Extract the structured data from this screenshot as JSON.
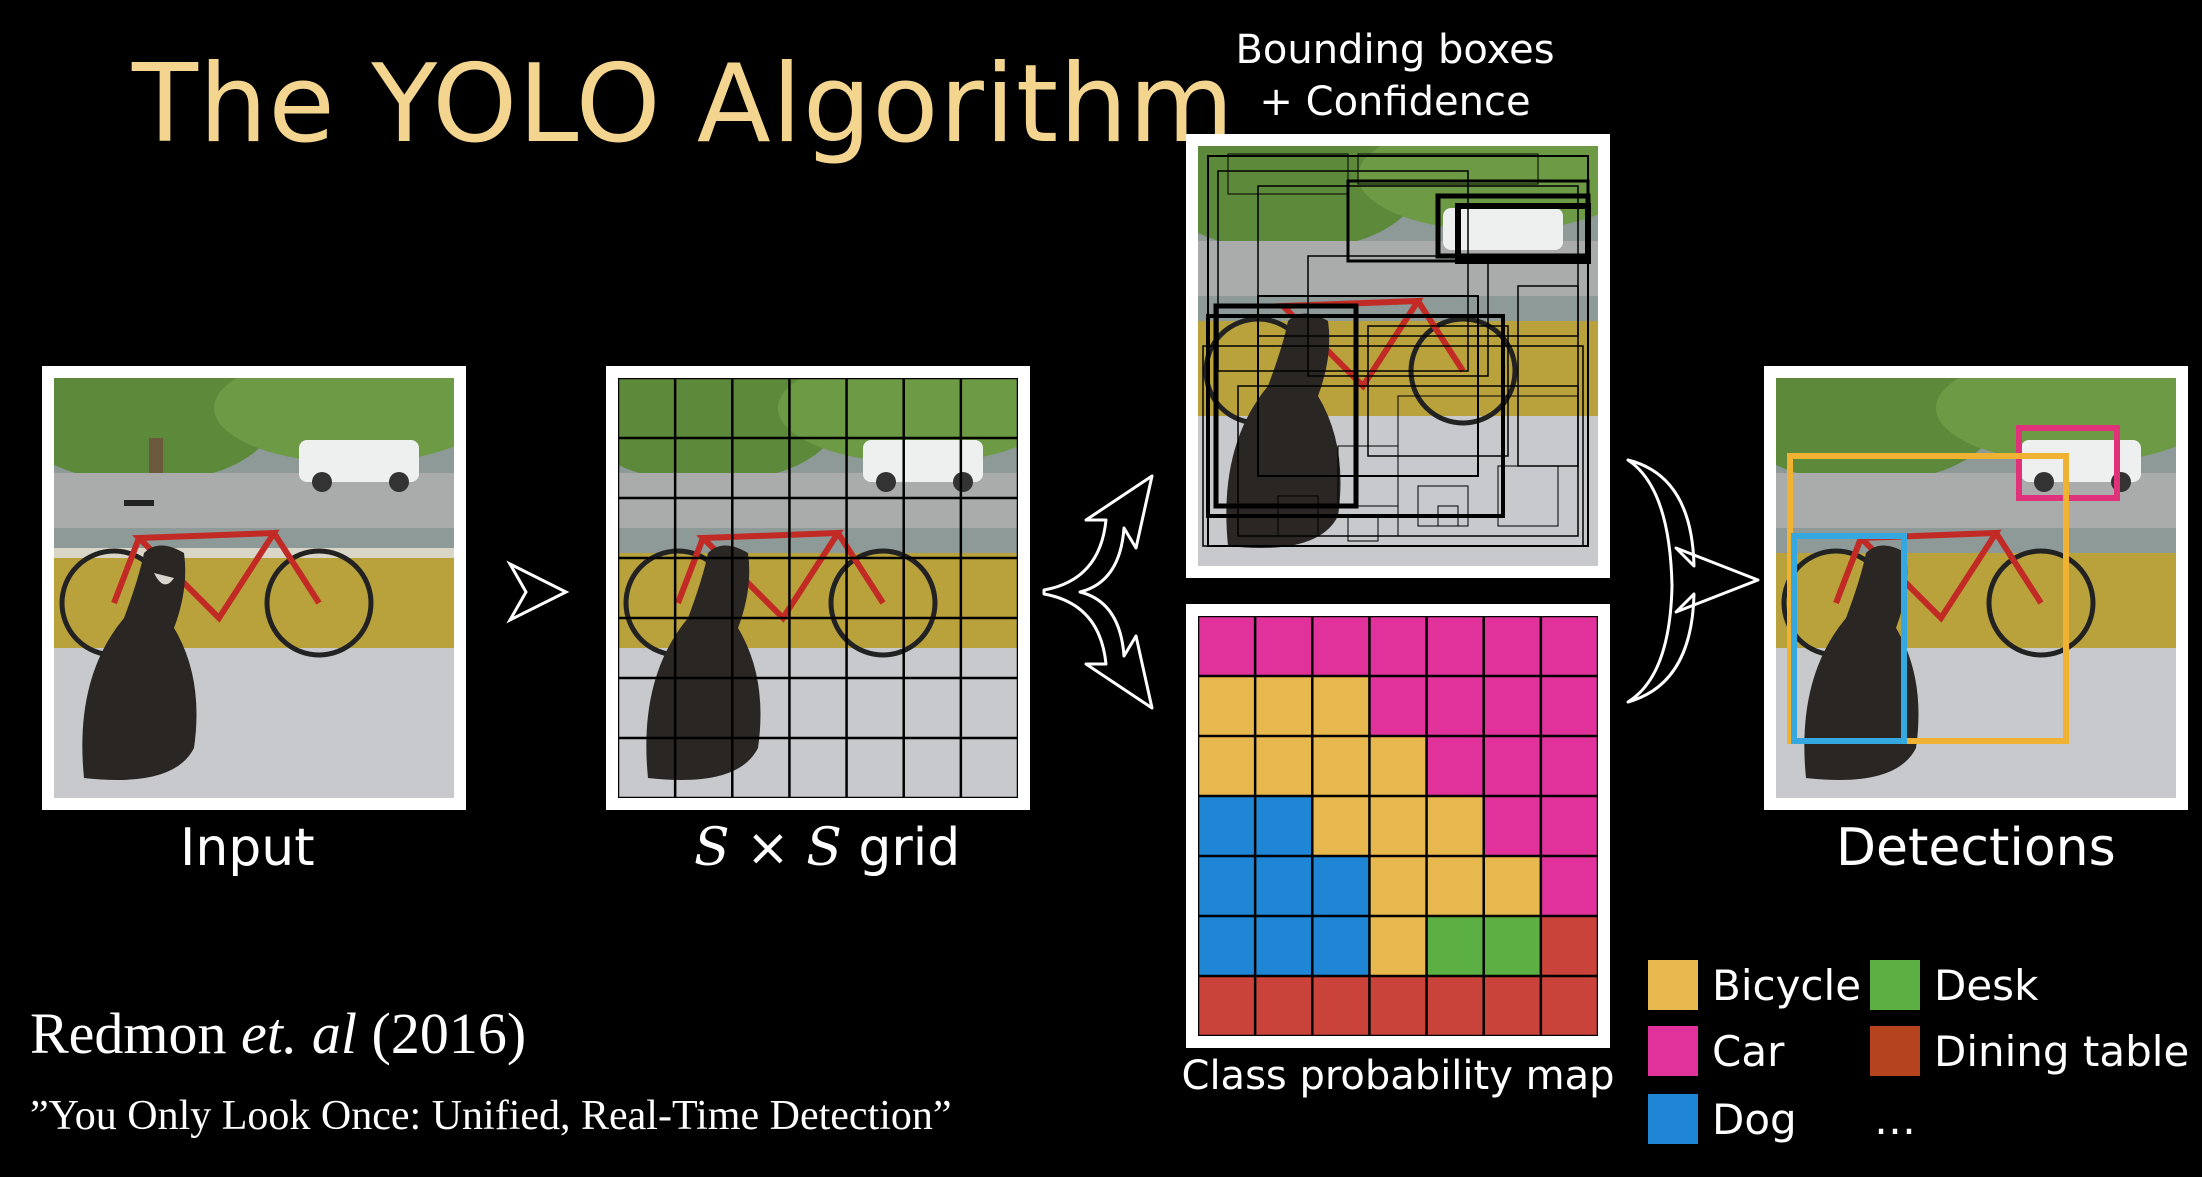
{
  "title": "The YOLO Algorithm",
  "captions": {
    "input": "Input",
    "grid_s": "S",
    "grid_times": "×",
    "grid_rest": "grid",
    "boxes_line1": "Bounding boxes",
    "boxes_line2": "+ Confidence",
    "class_map": "Class probability map",
    "detections": "Detections"
  },
  "citation": {
    "authors": "Redmon",
    "etal": "et. al",
    "year": "(2016)",
    "paper": "”You Only Look Once: Unified, Real-Time Detection”"
  },
  "legend": [
    {
      "label": "Bicycle",
      "color": "#e6b84e"
    },
    {
      "label": "Desk",
      "color": "#5cb043"
    },
    {
      "label": "Car",
      "color": "#e0329a"
    },
    {
      "label": "Dining table",
      "color": "#b5431d"
    },
    {
      "label": "Dog",
      "color": "#1f86d6"
    },
    {
      "label": "…",
      "color": ""
    }
  ],
  "class_grid": {
    "rows": 7,
    "cols": 7,
    "cells": [
      [
        "car",
        "car",
        "car",
        "car",
        "car",
        "car",
        "car"
      ],
      [
        "bicycle",
        "bicycle",
        "bicycle",
        "car",
        "car",
        "car",
        "car"
      ],
      [
        "bicycle",
        "bicycle",
        "bicycle",
        "bicycle",
        "car",
        "car",
        "car"
      ],
      [
        "dog",
        "dog",
        "bicycle",
        "bicycle",
        "bicycle",
        "car",
        "car"
      ],
      [
        "dog",
        "dog",
        "dog",
        "bicycle",
        "bicycle",
        "bicycle",
        "car"
      ],
      [
        "dog",
        "dog",
        "dog",
        "bicycle",
        "desk",
        "desk",
        "table"
      ],
      [
        "table",
        "table",
        "table",
        "table",
        "table",
        "table",
        "table"
      ]
    ],
    "colors": {
      "car": "#e0329a",
      "bicycle": "#e6b84e",
      "dog": "#1f86d6",
      "desk": "#5cb043",
      "table": "#c9433b"
    }
  },
  "colors": {
    "title": "#f3d58f",
    "detection_car": "#e0327a",
    "detection_bicycle": "#f0b232",
    "detection_dog": "#35a8e0"
  }
}
